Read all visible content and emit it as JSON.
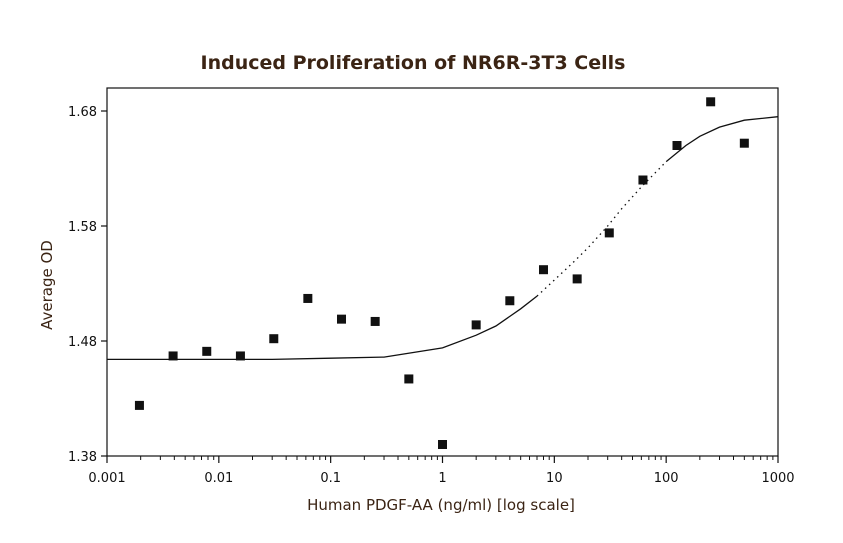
{
  "chart_data": {
    "type": "scatter",
    "title": "Induced Proliferation of NR6R-3T3 Cells",
    "xlabel": "Human PDGF-AA (ng/ml) [log scale]",
    "ylabel": "Average OD",
    "x_scale": "log",
    "xlim": [
      0.001,
      1000
    ],
    "ylim": [
      1.38,
      1.7
    ],
    "x_ticks": [
      0.001,
      0.01,
      0.1,
      1,
      10,
      100,
      1000
    ],
    "x_tick_labels": [
      "0.001",
      "0.01",
      "0.1",
      "1",
      "10",
      "100",
      "1000"
    ],
    "y_ticks": [
      1.38,
      1.48,
      1.58,
      1.68
    ],
    "y_tick_labels": [
      "1.38",
      "1.48",
      "1.58",
      "1.68"
    ],
    "grid": false,
    "legend": "none",
    "series": [
      {
        "type": "scatter",
        "marker": "square",
        "color": "#111111",
        "x": [
          0.00195,
          0.0039,
          0.0078,
          0.0156,
          0.031,
          0.0625,
          0.125,
          0.25,
          0.5,
          1,
          2,
          4,
          8,
          16,
          31,
          62,
          125,
          250,
          500
        ],
        "y": [
          1.424,
          1.467,
          1.471,
          1.467,
          1.482,
          1.517,
          1.499,
          1.497,
          1.447,
          1.39,
          1.494,
          1.515,
          1.542,
          1.534,
          1.574,
          1.62,
          1.65,
          1.688,
          1.652
        ]
      },
      {
        "type": "line",
        "style": "fitted curve",
        "color": "#111111",
        "x": [
          0.001,
          0.003,
          0.01,
          0.03,
          0.1,
          0.3,
          1,
          2,
          3,
          5,
          7,
          10,
          15,
          20,
          30,
          40,
          60,
          100,
          150,
          200,
          300,
          500,
          1000
        ],
        "y": [
          1.464,
          1.464,
          1.464,
          1.464,
          1.465,
          1.466,
          1.474,
          1.485,
          1.493,
          1.508,
          1.519,
          1.533,
          1.549,
          1.561,
          1.58,
          1.595,
          1.614,
          1.636,
          1.65,
          1.658,
          1.666,
          1.672,
          1.675
        ]
      }
    ]
  }
}
